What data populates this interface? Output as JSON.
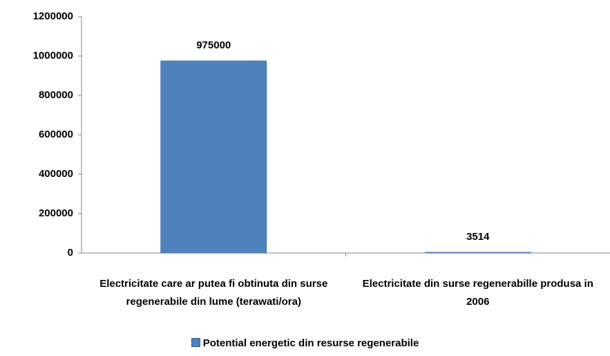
{
  "chart_data": {
    "type": "bar",
    "categories": [
      "Electricitate care ar putea fi obtinuta din surse regenerabile din lume (terawati/ora)",
      "Electricitate din surse regenerabille produsa in 2006"
    ],
    "series": [
      {
        "name": "Potential energetic din resurse regenerabile",
        "color": "#4f81bd",
        "values": [
          975000,
          3514
        ]
      }
    ],
    "ylim": [
      0,
      1200000
    ],
    "yticks": [
      0,
      200000,
      400000,
      600000,
      800000,
      1000000,
      1200000
    ],
    "grid": false,
    "legend": "bottom"
  }
}
